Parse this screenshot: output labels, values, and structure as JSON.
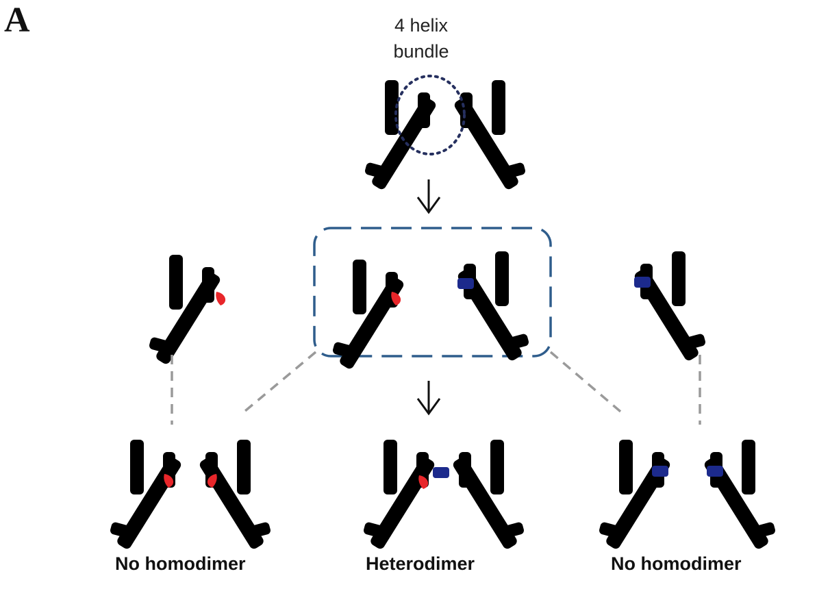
{
  "panel_letter": "A",
  "annotation": {
    "line1": "4 helix",
    "line2": "bundle"
  },
  "captions": {
    "left": "No homodimer",
    "center": "Heterodimer",
    "right": "No homodimer"
  },
  "colors": {
    "wildtype": "#3cc7c9",
    "wildtype_dark": "#199a9e",
    "grey_structure": "#d4d4d4",
    "grey_dark": "#8a8a8a",
    "mutation_a": "#e8262a",
    "mutation_b": "#1c2a8c",
    "outline_box": "#2f5d8c",
    "connector": "#9a9a9a",
    "arrow": "#111111"
  }
}
